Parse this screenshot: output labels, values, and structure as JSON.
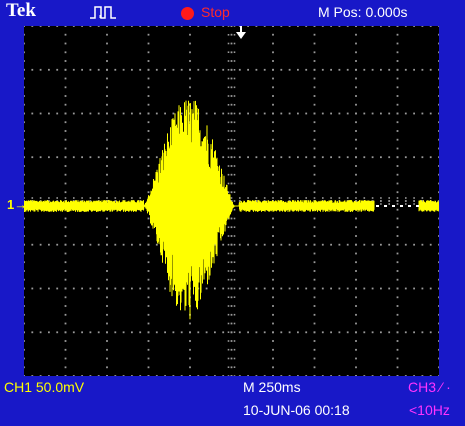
{
  "topbar": {
    "brand": "Tek",
    "trigger_icon": "pulse-trigger-icon",
    "run_state": "Stop",
    "run_dot_color": "#ff1a1a",
    "horizontal_position": "M Pos: 0.000s"
  },
  "screen": {
    "background_color": "#1818c8",
    "graticule_color": "#000000",
    "trace_color": "#ffff00",
    "channel_marker": "1→"
  },
  "statusbar": {
    "ch1_scale": "CH1  50.0mV",
    "timebase": "M 250ms",
    "trigger_source": "CH3 ⁄ ·",
    "datetime": "10-JUN-06 00:18",
    "trigger_frequency": "<10Hz"
  }
}
